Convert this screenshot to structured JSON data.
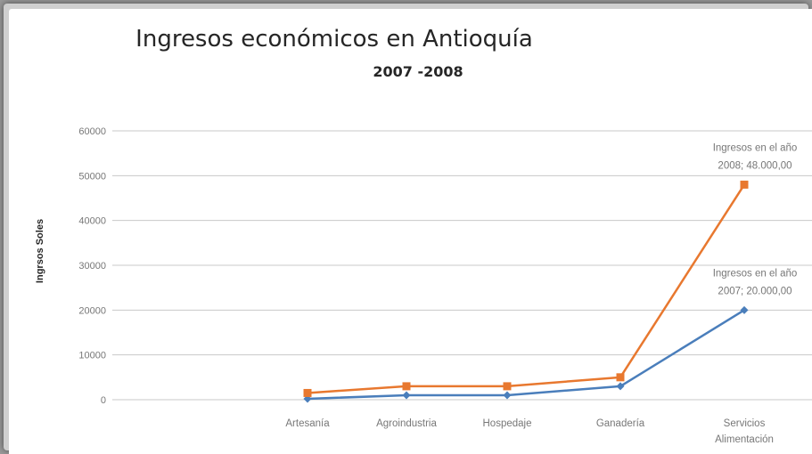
{
  "chart_data": {
    "type": "line",
    "title": "Ingresos económicos en Antioquía",
    "subtitle": "2007 -2008",
    "ylabel": "Ingrsos Soles",
    "xlabel": "",
    "categories": [
      "Artesanía",
      "Agroindustria",
      "Hospedaje",
      "Ganadería",
      "Servicios Alimentación"
    ],
    "category_lines": [
      [
        "Artesanía"
      ],
      [
        "Agroindustria"
      ],
      [
        "Hospedaje"
      ],
      [
        "Ganadería"
      ],
      [
        "Servicios",
        "Alimentación"
      ]
    ],
    "ylim": [
      0,
      60000
    ],
    "yticks": [
      "0",
      "10000",
      "20000",
      "30000",
      "40000",
      "50000",
      "60000"
    ],
    "grid": true,
    "series": [
      {
        "key": "2007",
        "color": "#4a7ebb",
        "marker": "diamond",
        "values": [
          200,
          1000,
          1000,
          3000,
          20000
        ]
      },
      {
        "key": "2008",
        "color": "#e8782f",
        "marker": "square",
        "values": [
          1500,
          3000,
          3000,
          5000,
          48000
        ]
      }
    ],
    "annotations": [
      {
        "series": 1,
        "point": 4,
        "lines": [
          "Ingresos en el año",
          "2008;  48.000,00"
        ]
      },
      {
        "series": 0,
        "point": 4,
        "lines": [
          "Ingresos en el año",
          "2007;  20.000,00"
        ]
      }
    ]
  }
}
